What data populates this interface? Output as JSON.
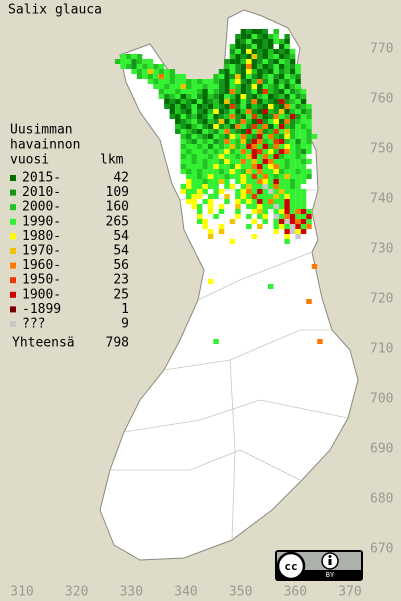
{
  "title": "Salix glauca",
  "legend": {
    "heading": [
      "Uusimman",
      "havainnon",
      "vuosi"
    ],
    "count_heading": "lkm",
    "items": [
      {
        "label": "2015-",
        "count": 42,
        "color": "#006d00"
      },
      {
        "label": "2010-",
        "count": 109,
        "color": "#13961a"
      },
      {
        "label": "2000-",
        "count": 160,
        "color": "#22c422"
      },
      {
        "label": "1990-",
        "count": 265,
        "color": "#33f033"
      },
      {
        "label": "1980-",
        "count": 54,
        "color": "#ffff00"
      },
      {
        "label": "1970-",
        "count": 54,
        "color": "#f2c200"
      },
      {
        "label": "1960-",
        "count": 56,
        "color": "#ff7800"
      },
      {
        "label": "1950-",
        "count": 23,
        "color": "#e83a00"
      },
      {
        "label": "1900-",
        "count": 25,
        "color": "#cc0000"
      },
      {
        "label": "-1899",
        "count": 1,
        "color": "#7a0000"
      },
      {
        "label": "???",
        "count": 9,
        "color": "#c8c8c8"
      }
    ],
    "total_label": "Yhteensä",
    "total": 798
  },
  "axis": {
    "yticks": [
      770,
      760,
      750,
      740,
      730,
      720,
      710,
      700,
      690,
      680,
      670
    ],
    "xticks": [
      310,
      320,
      330,
      340,
      350,
      360,
      370
    ]
  },
  "license": "BY",
  "grid": {
    "rows": [
      {
        "y": 773,
        "x0": 349,
        "c": [
          null,
          0,
          1,
          0,
          0,
          1,
          null,
          2
        ]
      },
      {
        "y": 772,
        "x0": 349,
        "c": [
          1,
          0,
          0,
          3,
          1,
          0,
          2,
          3,
          null,
          1
        ]
      },
      {
        "y": 771,
        "x0": 349,
        "c": [
          0,
          1,
          3,
          0,
          0,
          1,
          0,
          3,
          2,
          0
        ]
      },
      {
        "y": 770,
        "x0": 348,
        "c": [
          2,
          0,
          0,
          1,
          3,
          0,
          1,
          0,
          null,
          0,
          3
        ]
      },
      {
        "y": 769,
        "x0": 348,
        "c": [
          1,
          3,
          0,
          4,
          0,
          1,
          0,
          2,
          0,
          1,
          0,
          3
        ]
      },
      {
        "y": 768,
        "x0": 328,
        "c": [
          3,
          2,
          3,
          2,
          null,
          null,
          null,
          null,
          null,
          null,
          null,
          null,
          null,
          null,
          null,
          null,
          null,
          null,
          null,
          null,
          2,
          0,
          1,
          0,
          5,
          1,
          0,
          2,
          3,
          0,
          1,
          2
        ]
      },
      {
        "y": 767,
        "x0": 327,
        "c": [
          2,
          3,
          3,
          1,
          2,
          3,
          3,
          null,
          null,
          null,
          null,
          null,
          null,
          null,
          null,
          null,
          null,
          null,
          null,
          null,
          1,
          0,
          0,
          2,
          4,
          0,
          1,
          3,
          1,
          0,
          3,
          2,
          0
        ]
      },
      {
        "y": 766,
        "x0": 328,
        "c": [
          3,
          2,
          1,
          3,
          2,
          3,
          2,
          3,
          null,
          null,
          null,
          null,
          null,
          null,
          null,
          null,
          null,
          null,
          null,
          2,
          3,
          1,
          0,
          6,
          0,
          2,
          0,
          1,
          3,
          0,
          2,
          1,
          3
        ]
      },
      {
        "y": 765,
        "x0": 330,
        "c": [
          3,
          2,
          3,
          5,
          3,
          2,
          3,
          2,
          null,
          null,
          null,
          null,
          null,
          null,
          null,
          null,
          1,
          0,
          3,
          1,
          0,
          4,
          2,
          0,
          1,
          0,
          3,
          1,
          2,
          0,
          3
        ]
      },
      {
        "y": 764,
        "x0": 331,
        "c": [
          2,
          3,
          2,
          3,
          6,
          3,
          2,
          3,
          3,
          null,
          null,
          null,
          null,
          null,
          2,
          3,
          0,
          1,
          5,
          0,
          3,
          1,
          0,
          2,
          3,
          1,
          0,
          3,
          2,
          1
        ]
      },
      {
        "y": 763,
        "x0": 333,
        "c": [
          3,
          2,
          3,
          3,
          2,
          3,
          3,
          2,
          3,
          2,
          3,
          3,
          2,
          1,
          0,
          3,
          4,
          1,
          0,
          2,
          6,
          1,
          3,
          0,
          2,
          1,
          3,
          0
        ]
      },
      {
        "y": 762,
        "x0": 334,
        "c": [
          3,
          3,
          2,
          3,
          3,
          5,
          2,
          3,
          3,
          2,
          3,
          3,
          1,
          0,
          3,
          2,
          0,
          1,
          4,
          0,
          3,
          2,
          1,
          3,
          0,
          2,
          3
        ]
      },
      {
        "y": 761,
        "x0": 335,
        "c": [
          2,
          3,
          3,
          2,
          3,
          3,
          3,
          2,
          0,
          3,
          2,
          1,
          0,
          6,
          2,
          0,
          1,
          3,
          0,
          7,
          2,
          1,
          0,
          3,
          1,
          2,
          3
        ]
      },
      {
        "y": 760,
        "x0": 335,
        "c": [
          3,
          1,
          2,
          3,
          0,
          2,
          3,
          1,
          0,
          2,
          1,
          0,
          3,
          2,
          0,
          4,
          1,
          0,
          2,
          3,
          0,
          1,
          2,
          0,
          3,
          1,
          2
        ]
      },
      {
        "y": 759,
        "x0": 336,
        "c": [
          0,
          1,
          0,
          2,
          1,
          0,
          3,
          0,
          1,
          2,
          0,
          5,
          1,
          0,
          3,
          1,
          6,
          0,
          2,
          1,
          0,
          8,
          1,
          2,
          3,
          0
        ]
      },
      {
        "y": 758,
        "x0": 336,
        "c": [
          1,
          0,
          2,
          0,
          1,
          3,
          0,
          1,
          0,
          2,
          1,
          0,
          7,
          1,
          3,
          0,
          2,
          1,
          0,
          4,
          1,
          0,
          6,
          3,
          1,
          2,
          3
        ]
      },
      {
        "y": 757,
        "x0": 337,
        "c": [
          0,
          2,
          1,
          0,
          3,
          1,
          0,
          2,
          4,
          0,
          1,
          3,
          0,
          2,
          6,
          1,
          0,
          8,
          2,
          1,
          5,
          0,
          2,
          3,
          1,
          2
        ]
      },
      {
        "y": 756,
        "x0": 337,
        "c": [
          1,
          0,
          3,
          1,
          2,
          0,
          1,
          3,
          0,
          1,
          2,
          6,
          1,
          0,
          3,
          7,
          2,
          0,
          1,
          6,
          3,
          2,
          8,
          1,
          3,
          2
        ]
      },
      {
        "y": 755,
        "x0": 338,
        "c": [
          0,
          1,
          2,
          3,
          1,
          0,
          2,
          1,
          5,
          0,
          3,
          1,
          6,
          2,
          0,
          8,
          1,
          3,
          4,
          0,
          6,
          1,
          2,
          3,
          3
        ]
      },
      {
        "y": 754,
        "x0": 338,
        "c": [
          2,
          1,
          0,
          2,
          3,
          1,
          0,
          4,
          1,
          2,
          0,
          6,
          3,
          1,
          7,
          2,
          6,
          0,
          3,
          8,
          2,
          1,
          3,
          2,
          3
        ]
      },
      {
        "y": 753,
        "x0": 338,
        "c": [
          1,
          3,
          2,
          1,
          0,
          3,
          2,
          1,
          3,
          6,
          2,
          1,
          0,
          8,
          3,
          6,
          1,
          2,
          7,
          3,
          5,
          2,
          3,
          3,
          2
        ]
      },
      {
        "y": 752,
        "x0": 339,
        "c": [
          2,
          1,
          3,
          2,
          1,
          0,
          3,
          2,
          1,
          4,
          3,
          6,
          2,
          1,
          8,
          3,
          6,
          2,
          1,
          4,
          2,
          3,
          3,
          2,
          3
        ]
      },
      {
        "y": 751,
        "x0": 339,
        "c": [
          3,
          2,
          1,
          3,
          2,
          3,
          1,
          2,
          6,
          3,
          2,
          5,
          1,
          8,
          6,
          2,
          3,
          7,
          8,
          2,
          3,
          1,
          3,
          2
        ]
      },
      {
        "y": 750,
        "x0": 339,
        "c": [
          2,
          3,
          3,
          2,
          3,
          1,
          3,
          2,
          3,
          5,
          2,
          3,
          8,
          6,
          3,
          8,
          2,
          6,
          3,
          4,
          3,
          2,
          3,
          3
        ]
      },
      {
        "y": 749,
        "x0": 339,
        "c": [
          3,
          2,
          3,
          3,
          2,
          3,
          2,
          3,
          4,
          2,
          3,
          6,
          3,
          8,
          7,
          3,
          4,
          2,
          8,
          6,
          3,
          2,
          1,
          3
        ]
      },
      {
        "y": 748,
        "x0": 339,
        "c": [
          2,
          3,
          2,
          3,
          3,
          2,
          3,
          4,
          3,
          3,
          2,
          3,
          5,
          8,
          3,
          6,
          3,
          8,
          2,
          3,
          3,
          2,
          3
        ]
      },
      {
        "y": 747,
        "x0": 339,
        "c": [
          3,
          3,
          2,
          3,
          2,
          3,
          3,
          2,
          4,
          3,
          3,
          6,
          3,
          5,
          3,
          8,
          6,
          3,
          3,
          2,
          3,
          3,
          2,
          3
        ]
      },
      {
        "y": 746,
        "x0": 339,
        "c": [
          2,
          3,
          3,
          3,
          2,
          3,
          4,
          3,
          3,
          2,
          4,
          3,
          3,
          6,
          8,
          3,
          4,
          6,
          3,
          2,
          3,
          3,
          3
        ]
      },
      {
        "y": 745,
        "x0": 339,
        "c": [
          3,
          2,
          3,
          2,
          3,
          3,
          3,
          2,
          3,
          4,
          3,
          2,
          5,
          3,
          6,
          3,
          3,
          4,
          2,
          3,
          3,
          2,
          3,
          3
        ]
      },
      {
        "y": 744,
        "x0": 340,
        "c": [
          3,
          3,
          2,
          3,
          4,
          3,
          3,
          2,
          3,
          3,
          4,
          3,
          7,
          3,
          6,
          3,
          2,
          3,
          5,
          3,
          3,
          3,
          2
        ]
      },
      {
        "y": 743,
        "x0": 340,
        "c": [
          4,
          3,
          3,
          2,
          3,
          3,
          5,
          3,
          null,
          3,
          4,
          3,
          3,
          6,
          4,
          3,
          8,
          3,
          3,
          2,
          3,
          3
        ]
      },
      {
        "y": 742,
        "x0": 339,
        "c": [
          3,
          4,
          3,
          3,
          4,
          3,
          3,
          null,
          3,
          4,
          null,
          3,
          5,
          3,
          3,
          10,
          3,
          6,
          3,
          3,
          2,
          3
        ]
      },
      {
        "y": 741,
        "x0": 339,
        "c": [
          4,
          3,
          3,
          4,
          3,
          null,
          3,
          4,
          null,
          null,
          3,
          4,
          6,
          3,
          8,
          3,
          10,
          3,
          5,
          3,
          3,
          3,
          3
        ]
      },
      {
        "y": 740,
        "x0": 340,
        "c": [
          3,
          4,
          4,
          null,
          3,
          3,
          null,
          5,
          null,
          3,
          4,
          3,
          7,
          3,
          3,
          3,
          5,
          3,
          4,
          3,
          3,
          3
        ]
      },
      {
        "y": 739,
        "x0": 340,
        "c": [
          4,
          4,
          null,
          3,
          4,
          null,
          null,
          3,
          null,
          4,
          3,
          4,
          3,
          8,
          3,
          6,
          3,
          3,
          8,
          3,
          3,
          3
        ]
      },
      {
        "y": 738,
        "x0": 341,
        "c": [
          4,
          3,
          null,
          4,
          null,
          4,
          null,
          null,
          5,
          null,
          3,
          3,
          4,
          3,
          3,
          10,
          3,
          8,
          3,
          3,
          3
        ]
      },
      {
        "y": 737,
        "x0": 342,
        "c": [
          3,
          null,
          4,
          null,
          3,
          null,
          null,
          3,
          null,
          null,
          4,
          5,
          3,
          null,
          3,
          4,
          8,
          3,
          6,
          8,
          3
        ]
      },
      {
        "y": 736,
        "x0": 342,
        "c": [
          4,
          null,
          null,
          3,
          null,
          null,
          null,
          4,
          null,
          3,
          null,
          3,
          4,
          null,
          10,
          3,
          6,
          8,
          3,
          3,
          8
        ]
      },
      {
        "y": 735,
        "x0": 342,
        "c": [
          3,
          4,
          null,
          null,
          null,
          null,
          5,
          null,
          null,
          null,
          4,
          null,
          3,
          null,
          3,
          8,
          10,
          8,
          6,
          8,
          3
        ]
      },
      {
        "y": 734,
        "x0": 343,
        "c": [
          4,
          null,
          null,
          4,
          null,
          null,
          null,
          null,
          3,
          null,
          5,
          null,
          null,
          3,
          4,
          3,
          10,
          8,
          3,
          6
        ]
      },
      {
        "y": 733,
        "x0": 344,
        "c": [
          4,
          null,
          5,
          null,
          null,
          null,
          null,
          null,
          null,
          null,
          null,
          null,
          4,
          null,
          8,
          10,
          4,
          8
        ]
      },
      {
        "y": 732,
        "x0": 344,
        "c": [
          5,
          null,
          null,
          null,
          null,
          null,
          null,
          null,
          4,
          null,
          null,
          null,
          null,
          null,
          4,
          null,
          10
        ]
      },
      {
        "y": 731,
        "x0": 348,
        "c": [
          4,
          null,
          null,
          null,
          null,
          null,
          null,
          null,
          null,
          null,
          3
        ]
      },
      {
        "y": 726,
        "x0": 363,
        "c": [
          6
        ]
      },
      {
        "y": 723,
        "x0": 344,
        "c": [
          4
        ]
      },
      {
        "y": 722,
        "x0": 355,
        "c": [
          3
        ]
      },
      {
        "y": 719,
        "x0": 362,
        "c": [
          6
        ]
      },
      {
        "y": 711,
        "x0": 345,
        "c": [
          3
        ]
      },
      {
        "y": 711,
        "x0": 364,
        "c": [
          6
        ]
      }
    ]
  }
}
